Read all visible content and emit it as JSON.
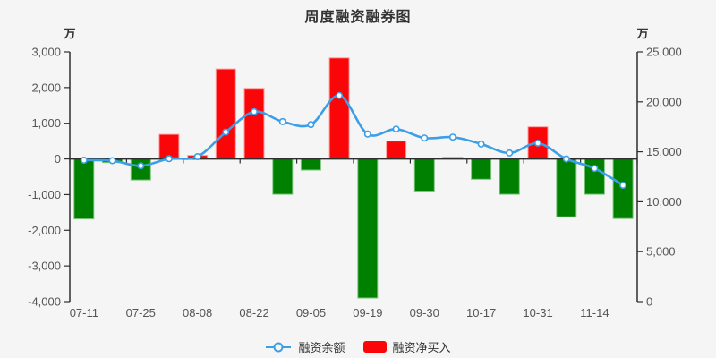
{
  "title": "周度融资融券图",
  "axes": {
    "left_unit": "万",
    "right_unit": "万",
    "left_ticks": [
      "3,000",
      "2,000",
      "1,000",
      "0",
      "-1,000",
      "-2,000",
      "-3,000",
      "-4,000"
    ],
    "right_ticks": [
      "25,000",
      "20,000",
      "15,000",
      "10,000",
      "5,000",
      "0"
    ]
  },
  "chart_data": {
    "type": "combo-bar-line",
    "title": "周度融资融券图",
    "x_tick_labels": [
      "07-11",
      "07-25",
      "08-08",
      "08-22",
      "09-05",
      "09-19",
      "09-30",
      "10-17",
      "10-31",
      "11-14"
    ],
    "points_per_label": 2,
    "left_axis_range": [
      -4000,
      3000
    ],
    "right_axis_range": [
      0,
      25000
    ],
    "grid": false,
    "legend_position": "bottom",
    "series": [
      {
        "name": "融资余额",
        "type": "line",
        "axis": "right",
        "unit": "万",
        "values": [
          14160,
          14110,
          13590,
          14310,
          14520,
          16970,
          19010,
          18020,
          17720,
          20640,
          16770,
          17280,
          16380,
          16470,
          15780,
          14880,
          15870,
          14280,
          13330,
          11650
        ]
      },
      {
        "name": "融资净买入",
        "type": "bar",
        "axis": "left",
        "unit": "万",
        "values": [
          -1680,
          -100,
          -590,
          690,
          100,
          2520,
          1980,
          -990,
          -310,
          2830,
          -3900,
          500,
          -900,
          50,
          -570,
          -990,
          900,
          -1620,
          -990,
          -1670
        ]
      }
    ]
  },
  "legend": {
    "items": [
      {
        "label": "融资余额",
        "marker": "line-circle"
      },
      {
        "label": "融资净买入",
        "marker": "rect"
      }
    ]
  },
  "colors": {
    "background": "#f5f5f5",
    "bar_positive": "#fa0508",
    "bar_positive_border": "#ff9c9c",
    "bar_negative": "#008000",
    "bar_negative_border": "#7cc57c",
    "line": "#3b9fe8",
    "marker_fill": "#ffffff",
    "axis": "#2e2e2e",
    "tick_text": "#555555",
    "title_text": "#333333"
  }
}
